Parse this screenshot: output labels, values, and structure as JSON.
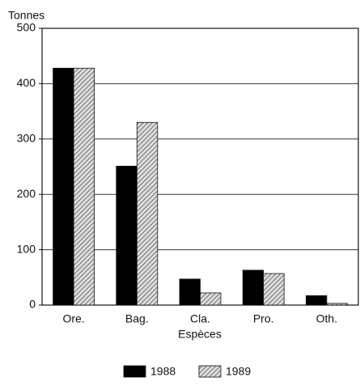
{
  "chart_data": {
    "type": "bar",
    "y_label": "Tonnes",
    "x_label": "Espèces",
    "categories": [
      "Ore.",
      "Bag.",
      "Cla.",
      "Pro.",
      "Oth."
    ],
    "series": [
      {
        "name": "1988",
        "color": "#000000",
        "hatch": false,
        "values": [
          428,
          251,
          47,
          63,
          17
        ]
      },
      {
        "name": "1989",
        "color": "#555555",
        "hatch": true,
        "values": [
          428,
          330,
          22,
          57,
          3
        ]
      }
    ],
    "ylim": [
      0,
      500
    ],
    "yticks": [
      0,
      100,
      200,
      300,
      400,
      500
    ],
    "grid": true,
    "legend": "bottom"
  }
}
